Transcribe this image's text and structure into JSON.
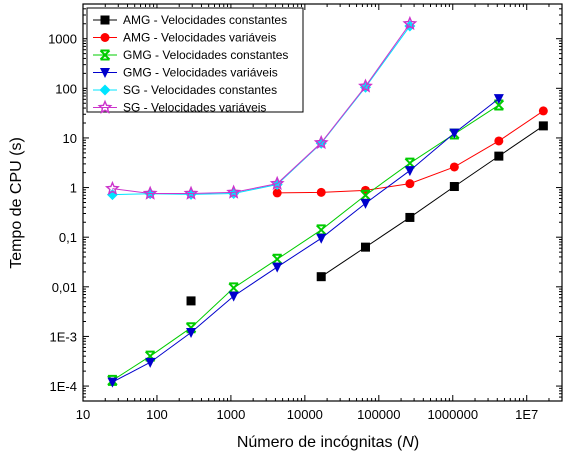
{
  "chart_data": {
    "type": "line",
    "xscale": "log",
    "yscale": "log",
    "xlim": [
      10,
      30000000
    ],
    "ylim": [
      5e-05,
      5000
    ],
    "xlabel_prefix": "Número de incógnitas (",
    "xlabel_var": "N",
    "xlabel_suffix": ")",
    "ylabel": "Tempo de CPU (s)",
    "x_ticks": [
      {
        "value": 10,
        "label": "10"
      },
      {
        "value": 100,
        "label": "100"
      },
      {
        "value": 1000,
        "label": "1000"
      },
      {
        "value": 10000,
        "label": "10000"
      },
      {
        "value": 100000,
        "label": "100000"
      },
      {
        "value": 1000000,
        "label": "1000000"
      },
      {
        "value": 10000000,
        "label": "1E7"
      }
    ],
    "y_ticks": [
      {
        "value": 0.0001,
        "label": "1E-4"
      },
      {
        "value": 0.001,
        "label": "1E-3"
      },
      {
        "value": 0.01,
        "label": "0,01"
      },
      {
        "value": 0.1,
        "label": "0,1"
      },
      {
        "value": 1,
        "label": "1"
      },
      {
        "value": 10,
        "label": "10"
      },
      {
        "value": 100,
        "label": "100"
      },
      {
        "value": 1000,
        "label": "1000"
      }
    ],
    "legend_position": "top-left",
    "series": [
      {
        "name": "AMG - Velocidades constantes",
        "color": "#000000",
        "marker": "square",
        "points": [
          [
            289,
            0.0052
          ]
        ],
        "points_line": [
          [
            16641,
            0.016
          ],
          [
            66049,
            0.063
          ],
          [
            263169,
            0.25
          ],
          [
            1050625,
            1.05
          ],
          [
            4198401,
            4.3
          ],
          [
            16785409,
            17.5
          ]
        ]
      },
      {
        "name": "AMG - Velocidades variáveis",
        "color": "#ff0000",
        "marker": "circle",
        "points_line": [
          [
            4225,
            0.78
          ],
          [
            16641,
            0.8
          ],
          [
            66049,
            0.88
          ],
          [
            263169,
            1.2
          ],
          [
            1050625,
            2.6
          ],
          [
            4198401,
            8.7
          ],
          [
            16785409,
            35
          ]
        ]
      },
      {
        "name": "GMG - Velocidades constantes",
        "color": "#00cc00",
        "marker": "x",
        "points_line": [
          [
            25,
            0.00013
          ],
          [
            81,
            0.0004
          ],
          [
            289,
            0.0015
          ],
          [
            1089,
            0.0095
          ],
          [
            4225,
            0.036
          ],
          [
            16641,
            0.14
          ],
          [
            66049,
            0.7
          ],
          [
            263169,
            3.1
          ],
          [
            1050625,
            12
          ],
          [
            4198401,
            46
          ]
        ]
      },
      {
        "name": "GMG - Velocidades variáveis",
        "color": "#0000cc",
        "marker": "triangle-down",
        "points_line": [
          [
            25,
            0.00012
          ],
          [
            81,
            0.0003
          ],
          [
            289,
            0.0012
          ],
          [
            1089,
            0.0065
          ],
          [
            4225,
            0.025
          ],
          [
            16641,
            0.095
          ],
          [
            66049,
            0.48
          ],
          [
            263169,
            2.2
          ],
          [
            1050625,
            12.5
          ],
          [
            4198401,
            62
          ]
        ]
      },
      {
        "name": "SG  - Velocidades constantes",
        "color": "#00e5ff",
        "marker": "diamond",
        "points_line": [
          [
            25,
            0.72
          ],
          [
            81,
            0.75
          ],
          [
            289,
            0.73
          ],
          [
            1089,
            0.76
          ],
          [
            4225,
            1.15
          ],
          [
            16641,
            7.8
          ],
          [
            66049,
            105
          ],
          [
            263169,
            1800
          ]
        ]
      },
      {
        "name": "SG  - Velocidades variáveis",
        "color": "#cc33cc",
        "marker": "star",
        "points_line": [
          [
            25,
            0.95
          ],
          [
            81,
            0.76
          ],
          [
            289,
            0.76
          ],
          [
            1089,
            0.8
          ],
          [
            4225,
            1.2
          ],
          [
            16641,
            8.0
          ],
          [
            66049,
            110
          ],
          [
            263169,
            2000
          ]
        ]
      }
    ]
  }
}
